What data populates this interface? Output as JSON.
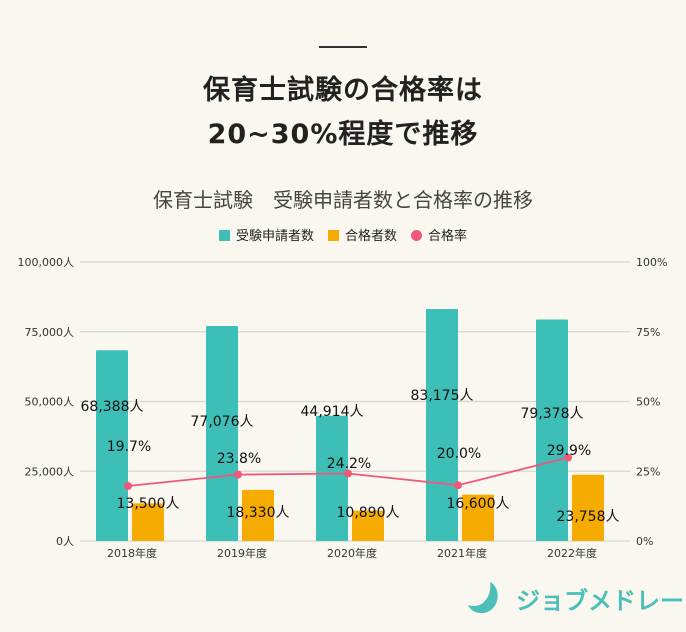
{
  "headline": {
    "line1": "保育士試験の合格率は",
    "line2": "20~30%程度で推移"
  },
  "chart_data": {
    "type": "bar",
    "title": "保育士試験　受験申請者数と合格率の推移",
    "categories": [
      "2018年度",
      "2019年度",
      "2020年度",
      "2021年度",
      "2022年度"
    ],
    "series": [
      {
        "name": "受験申請者数",
        "type": "bar",
        "axis": "left",
        "color": "#3dbfb8",
        "values": [
          68388,
          77076,
          44914,
          83175,
          79378
        ],
        "labels": [
          "68,388人",
          "77,076人",
          "44,914人",
          "83,175人",
          "79,378人"
        ]
      },
      {
        "name": "合格者数",
        "type": "bar",
        "axis": "left",
        "color": "#f5ab00",
        "values": [
          13500,
          18330,
          10890,
          16600,
          23758
        ],
        "labels": [
          "13,500人",
          "18,330人",
          "10,890人",
          "16,600人",
          "23,758人"
        ]
      },
      {
        "name": "合格率",
        "type": "line",
        "axis": "right",
        "color": "#f0587a",
        "values": [
          19.7,
          23.8,
          24.2,
          20.0,
          29.9
        ],
        "labels": [
          "19.7%",
          "23.8%",
          "24.2%",
          "20.0%",
          "29.9%"
        ]
      }
    ],
    "left_axis": {
      "ylim": [
        0,
        100000
      ],
      "ticks": [
        "0人",
        "25,000人",
        "50,000人",
        "75,000人",
        "100,000人"
      ]
    },
    "right_axis": {
      "ylim": [
        0,
        100
      ],
      "ticks": [
        "0%",
        "25%",
        "50%",
        "75%",
        "100%"
      ]
    },
    "grid": true,
    "legend": "top"
  },
  "brand": {
    "name": "ジョブメドレー",
    "color": "#4bbfb8"
  }
}
